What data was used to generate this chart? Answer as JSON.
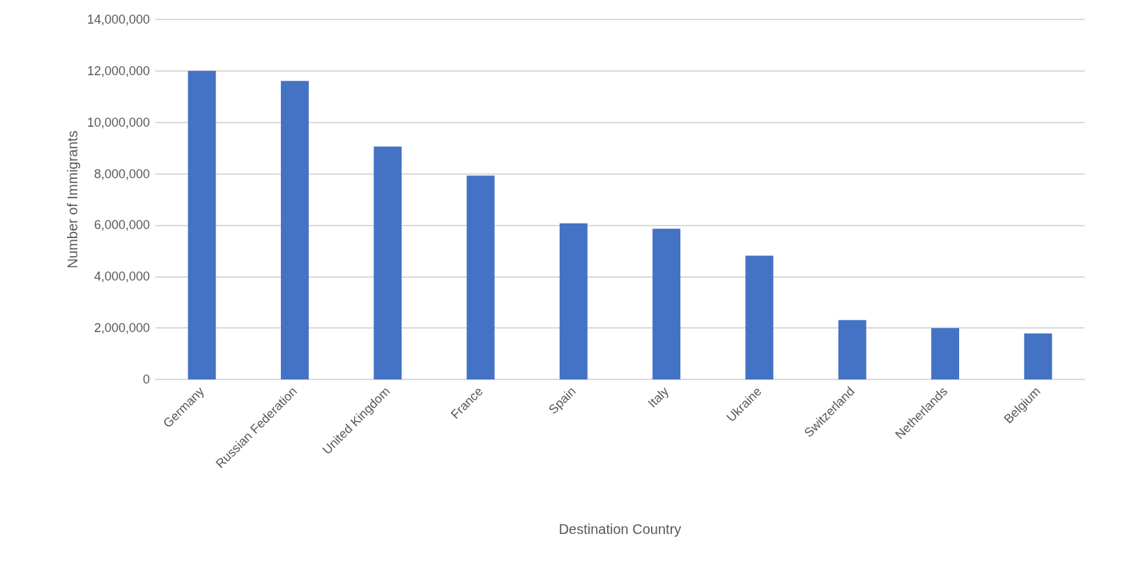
{
  "chart_data": {
    "type": "bar",
    "xlabel": "Destination Country",
    "ylabel": "Number of Immigrants",
    "categories": [
      "Germany",
      "Russian Federation",
      "United Kingdom",
      "France",
      "Spain",
      "Italy",
      "Ukraine",
      "Switzerland",
      "Netherlands",
      "Belgium"
    ],
    "values": [
      12000000,
      11610000,
      9060000,
      7930000,
      6070000,
      5860000,
      4810000,
      2310000,
      2000000,
      1790000
    ],
    "color": "#4472c4",
    "ylim": [
      0,
      14000000
    ],
    "yticks": [
      0,
      {
        "value": 2000000,
        "label": "2,000,000"
      },
      {
        "value": 4000000,
        "label": "4,000,000"
      },
      {
        "value": 6000000,
        "label": "6,000,000"
      },
      {
        "value": 8000000,
        "label": "8,000,000"
      },
      {
        "value": 10000000,
        "label": "10,000,000"
      },
      {
        "value": 12000000,
        "label": "12,000,000"
      },
      {
        "value": 14000000,
        "label": "14,000,000"
      }
    ],
    "grid": "y"
  }
}
